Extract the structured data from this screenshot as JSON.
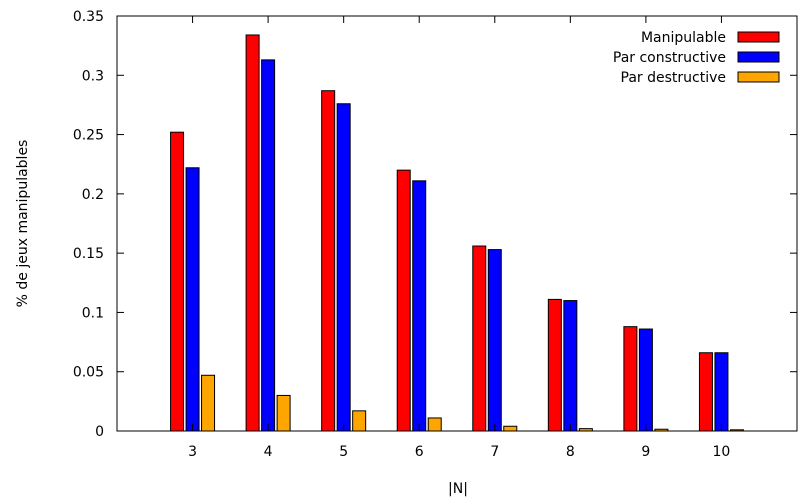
{
  "chart_data": {
    "type": "bar",
    "title": "",
    "xlabel": "|N|",
    "ylabel": "% de jeux manipulables",
    "categories": [
      "3",
      "4",
      "5",
      "6",
      "7",
      "8",
      "9",
      "10"
    ],
    "series": [
      {
        "name": "Manipulable",
        "color": "#ff0000",
        "values": [
          0.252,
          0.334,
          0.287,
          0.22,
          0.156,
          0.111,
          0.088,
          0.066
        ]
      },
      {
        "name": "Par constructive",
        "color": "#0000ff",
        "values": [
          0.222,
          0.313,
          0.276,
          0.211,
          0.153,
          0.11,
          0.086,
          0.066
        ]
      },
      {
        "name": "Par destructive",
        "color": "#ffa500",
        "values": [
          0.047,
          0.03,
          0.017,
          0.011,
          0.004,
          0.002,
          0.0015,
          0.001
        ]
      }
    ],
    "ylim": [
      0,
      0.35
    ],
    "yticks": [
      "0",
      "0.05",
      "0.1",
      "0.15",
      "0.2",
      "0.25",
      "0.3",
      "0.35"
    ],
    "xlim": [
      2,
      11
    ],
    "grid": false,
    "legend_position": "top-right"
  }
}
